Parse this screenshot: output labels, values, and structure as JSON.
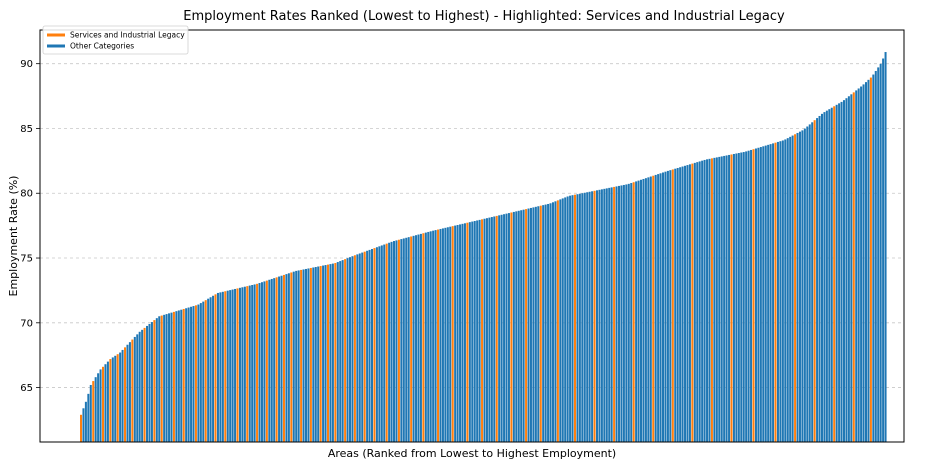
{
  "chart_data": {
    "type": "bar",
    "title": "Employment Rates Ranked (Lowest to Highest) - Highlighted: Services and Industrial Legacy",
    "xlabel": "Areas (Ranked from Lowest to Highest Employment)",
    "ylabel": "Employment Rate (%)",
    "ylim": [
      60.8,
      92.6
    ],
    "yticks": [
      65,
      70,
      75,
      80,
      85,
      90
    ],
    "ytick_labels": [
      "65",
      "70",
      "75",
      "80",
      "85",
      "90"
    ],
    "grid": "y-dashed",
    "legend": {
      "placement": "top-left",
      "entries": [
        {
          "label": "Services and Industrial Legacy",
          "color": "#ff7f0e"
        },
        {
          "label": "Other Categories",
          "color": "#1f77b4"
        }
      ]
    },
    "colors": {
      "highlight": "#ff7f0e",
      "other": "#1f77b4"
    },
    "bar_count": 330,
    "knots": [
      [
        0,
        62.9
      ],
      [
        3,
        64.1
      ],
      [
        5,
        65.2
      ],
      [
        10,
        66.4
      ],
      [
        15,
        67.2
      ],
      [
        20,
        67.7
      ],
      [
        30,
        69.3
      ],
      [
        40,
        70.5
      ],
      [
        60,
        71.4
      ],
      [
        70,
        72.3
      ],
      [
        90,
        73.0
      ],
      [
        100,
        73.5
      ],
      [
        110,
        74.0
      ],
      [
        130,
        74.6
      ],
      [
        140,
        75.2
      ],
      [
        160,
        76.3
      ],
      [
        180,
        77.1
      ],
      [
        200,
        77.8
      ],
      [
        240,
        79.2
      ],
      [
        250,
        79.8
      ],
      [
        280,
        80.7
      ],
      [
        300,
        81.7
      ],
      [
        320,
        82.6
      ],
      [
        340,
        83.2
      ],
      [
        360,
        84.1
      ],
      [
        370,
        84.9
      ],
      [
        380,
        86.2
      ],
      [
        390,
        87.1
      ],
      [
        400,
        88.3
      ],
      [
        405,
        89.0
      ],
      [
        410,
        90.1
      ],
      [
        412,
        90.9
      ]
    ],
    "knot_max": 412,
    "highlighted_ranks": [
      0,
      5,
      9,
      12,
      15,
      18,
      21,
      26,
      30,
      33,
      38,
      42,
      47,
      51,
      55,
      59,
      64,
      68,
      72,
      76,
      80,
      83,
      86,
      90,
      94,
      98,
      101,
      104,
      108,
      112,
      116,
      120,
      125,
      130,
      135,
      140,
      146,
      152,
      158,
      164,
      170,
      176,
      182,
      188,
      195,
      202,
      210,
      218,
      226,
      234,
      242,
      250,
      258,
      266,
      275,
      284,
      292,
      300,
      308,
      316,
      323
    ]
  }
}
